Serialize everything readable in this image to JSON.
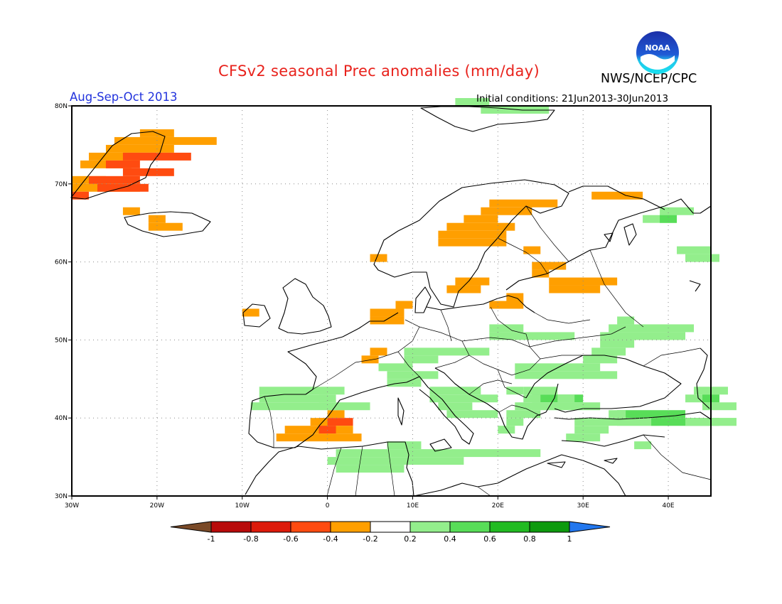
{
  "header": {
    "title": "CFSv2 seasonal Prec anomalies (mm/day)",
    "period": "Aug-Sep-Oct 2013",
    "initial_conditions": "Initial conditions: 21Jun2013-30Jun2013",
    "agency": "NWS/NCEP/CPC",
    "logo_text": "NOAA"
  },
  "map": {
    "lon_range": [
      -30,
      45
    ],
    "lat_range": [
      30,
      80
    ],
    "lat_ticks": [
      {
        "value": 80,
        "label": "80N"
      },
      {
        "value": 70,
        "label": "70N"
      },
      {
        "value": 60,
        "label": "60N"
      },
      {
        "value": 50,
        "label": "50N"
      },
      {
        "value": 40,
        "label": "40N"
      },
      {
        "value": 30,
        "label": "30N"
      }
    ],
    "lon_ticks": [
      {
        "value": -30,
        "label": "30W"
      },
      {
        "value": -20,
        "label": "20W"
      },
      {
        "value": -10,
        "label": "10W"
      },
      {
        "value": 0,
        "label": "0"
      },
      {
        "value": 10,
        "label": "10E"
      },
      {
        "value": 20,
        "label": "20E"
      },
      {
        "value": 30,
        "label": "30E"
      },
      {
        "value": 40,
        "label": "40E"
      }
    ],
    "grid_lines": "dotted"
  },
  "legend": {
    "labels": [
      "-1",
      "-0.8",
      "-0.6",
      "-0.4",
      "-0.2",
      "0.2",
      "0.4",
      "0.6",
      "0.8",
      "1"
    ],
    "colors": [
      "#7a4a28",
      "#b80a0a",
      "#dd1a0a",
      "#ff4b10",
      "#ff9f00",
      "#ffffff",
      "#93ee8c",
      "#58dd58",
      "#22bb22",
      "#0d9a0d",
      "#2277ee"
    ]
  },
  "anomaly_cells": {
    "cell_deg_lon": 2,
    "cell_deg_lat": 1,
    "colors": {
      "o": "#ff9f00",
      "r": "#ff4b10",
      "g": "#93ee8c",
      "G": "#58dd58"
    },
    "rects": [
      [
        "o",
        -22,
        76,
        2,
        1
      ],
      [
        "o",
        -25,
        75,
        6,
        1
      ],
      [
        "o",
        -26,
        74,
        4,
        1
      ],
      [
        "o",
        -28,
        73,
        3,
        1
      ],
      [
        "r",
        -24,
        73,
        4,
        1
      ],
      [
        "o",
        -29,
        72,
        3,
        1
      ],
      [
        "r",
        -26,
        72,
        2,
        1
      ],
      [
        "r",
        -24,
        71,
        3,
        1
      ],
      [
        "o",
        -30,
        70,
        2,
        1
      ],
      [
        "r",
        -28,
        70,
        3,
        1
      ],
      [
        "o",
        -30,
        69,
        4,
        1
      ],
      [
        "r",
        -27,
        69,
        3,
        1
      ],
      [
        "r",
        -30,
        68,
        1,
        1
      ],
      [
        "o",
        -24,
        66,
        1,
        1
      ],
      [
        "o",
        -21,
        65,
        1,
        1
      ],
      [
        "o",
        -21,
        64,
        2,
        1
      ],
      [
        "o",
        19,
        67,
        4,
        1
      ],
      [
        "o",
        18,
        66,
        3,
        1
      ],
      [
        "o",
        16,
        65,
        2,
        1
      ],
      [
        "o",
        14,
        64,
        4,
        1
      ],
      [
        "o",
        13,
        63,
        4,
        1
      ],
      [
        "o",
        13,
        62,
        4,
        1
      ],
      [
        "o",
        31,
        68,
        3,
        1
      ],
      [
        "o",
        24,
        59,
        2,
        1
      ],
      [
        "o",
        23,
        61,
        1,
        1
      ],
      [
        "o",
        24,
        58,
        1,
        1
      ],
      [
        "o",
        15,
        57,
        2,
        1
      ],
      [
        "o",
        14,
        56,
        2,
        1
      ],
      [
        "o",
        26,
        57,
        4,
        1
      ],
      [
        "o",
        26,
        56,
        3,
        1
      ],
      [
        "o",
        21,
        55,
        1,
        1
      ],
      [
        "o",
        19,
        54,
        2,
        1
      ],
      [
        "o",
        5,
        53,
        2,
        1
      ],
      [
        "o",
        8,
        54,
        1,
        1
      ],
      [
        "o",
        5,
        52,
        2,
        1
      ],
      [
        "o",
        -10,
        53,
        1,
        1
      ],
      [
        "o",
        5,
        48,
        1,
        1
      ],
      [
        "o",
        4,
        47,
        1,
        1
      ],
      [
        "o",
        5,
        60,
        1,
        1
      ],
      [
        "o",
        0,
        40,
        1,
        1
      ],
      [
        "r",
        -1,
        39,
        2,
        1
      ],
      [
        "o",
        -2,
        39,
        1,
        1
      ],
      [
        "o",
        -5,
        38,
        4,
        1
      ],
      [
        "r",
        -1,
        38,
        1,
        1
      ],
      [
        "o",
        -6,
        37,
        5,
        1
      ],
      [
        "g",
        31,
        48,
        2,
        1
      ],
      [
        "g",
        30,
        47,
        2,
        1
      ],
      [
        "g",
        22,
        46,
        5,
        1
      ],
      [
        "g",
        22,
        45,
        6,
        1
      ],
      [
        "g",
        9,
        48,
        5,
        1
      ],
      [
        "g",
        9,
        47,
        2,
        1
      ],
      [
        "g",
        6,
        46,
        2,
        1
      ],
      [
        "g",
        7,
        45,
        3,
        1
      ],
      [
        "g",
        7,
        44,
        2,
        1
      ],
      [
        "g",
        12,
        43,
        3,
        1
      ],
      [
        "g",
        12,
        42,
        4,
        1
      ],
      [
        "g",
        13,
        41,
        2,
        1
      ],
      [
        "g",
        14,
        40,
        3,
        1
      ],
      [
        "g",
        21,
        43,
        1,
        1
      ],
      [
        "g",
        23,
        43,
        2,
        1
      ],
      [
        "G",
        24,
        42,
        3,
        1
      ],
      [
        "g",
        23,
        42,
        1,
        1
      ],
      [
        "g",
        27,
        42,
        1,
        1
      ],
      [
        "g",
        22,
        41,
        5,
        1
      ],
      [
        "g",
        21,
        40,
        2,
        1
      ],
      [
        "g",
        21,
        39,
        1,
        1
      ],
      [
        "g",
        20,
        38,
        1,
        1
      ],
      [
        "g",
        -8,
        43,
        5,
        1
      ],
      [
        "g",
        -8,
        42,
        4,
        1
      ],
      [
        "g",
        -9,
        41,
        7,
        1
      ],
      [
        "g",
        -1,
        42,
        1,
        1
      ],
      [
        "g",
        19,
        51,
        2,
        1
      ],
      [
        "g",
        19,
        50,
        5,
        1
      ],
      [
        "g",
        34,
        52,
        1,
        1
      ],
      [
        "g",
        33,
        51,
        5,
        1
      ],
      [
        "g",
        32,
        50,
        5,
        1
      ],
      [
        "g",
        32,
        49,
        2,
        1
      ],
      [
        "g",
        42,
        60,
        2,
        1
      ],
      [
        "g",
        41,
        61,
        2,
        1
      ],
      [
        "g",
        37,
        65,
        2,
        1
      ],
      [
        "g",
        39,
        66,
        2,
        1
      ],
      [
        "G",
        39,
        65,
        1,
        1
      ],
      [
        "g",
        43,
        43,
        2,
        1
      ],
      [
        "g",
        42,
        42,
        2,
        1
      ],
      [
        "G",
        44,
        42,
        1,
        1
      ],
      [
        "g",
        44,
        41,
        2,
        1
      ],
      [
        "g",
        29,
        39,
        5,
        1
      ],
      [
        "G",
        34,
        40,
        4,
        1
      ],
      [
        "g",
        33,
        40,
        1,
        1
      ],
      [
        "g",
        34,
        39,
        7,
        1
      ],
      [
        "G",
        38,
        39,
        4,
        1
      ],
      [
        "g",
        42,
        39,
        3,
        1
      ],
      [
        "g",
        29,
        38,
        2,
        1
      ],
      [
        "g",
        28,
        37,
        2,
        1
      ],
      [
        "g",
        36,
        36,
        1,
        1
      ],
      [
        "g",
        1,
        35,
        12,
        1
      ],
      [
        "g",
        0,
        34,
        8,
        1
      ],
      [
        "g",
        1,
        33,
        4,
        1
      ],
      [
        "g",
        7,
        36,
        2,
        1
      ],
      [
        "g",
        15,
        80,
        2,
        1
      ],
      [
        "g",
        18,
        79,
        4,
        1
      ]
    ]
  }
}
